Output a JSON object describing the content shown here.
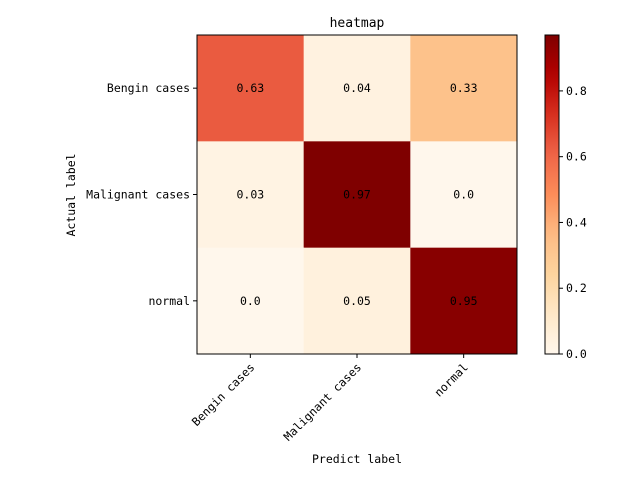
{
  "chart_data": {
    "type": "heatmap",
    "title": "heatmap",
    "xlabel": "Predict label",
    "ylabel": "Actual label",
    "x_categories": [
      "Bengin cases",
      "Malignant cases",
      "normal"
    ],
    "y_categories": [
      "Bengin cases",
      "Malignant cases",
      "normal"
    ],
    "values": [
      [
        0.63,
        0.04,
        0.33
      ],
      [
        0.03,
        0.97,
        0.0
      ],
      [
        0.0,
        0.05,
        0.95
      ]
    ],
    "value_labels": [
      [
        "0.63",
        "0.04",
        "0.33"
      ],
      [
        "0.03",
        "0.97",
        "0.0"
      ],
      [
        "0.0",
        "0.05",
        "0.95"
      ]
    ],
    "colormap": "OrRd",
    "color_range": [
      0.0,
      0.97
    ],
    "colorbar": {
      "ticks": [
        0.0,
        0.2,
        0.4,
        0.6,
        0.8
      ],
      "tick_labels": [
        "0.0",
        "0.2",
        "0.4",
        "0.6",
        "0.8"
      ],
      "placement": "right"
    },
    "grid": false,
    "x_tick_rotation_deg": 45
  }
}
